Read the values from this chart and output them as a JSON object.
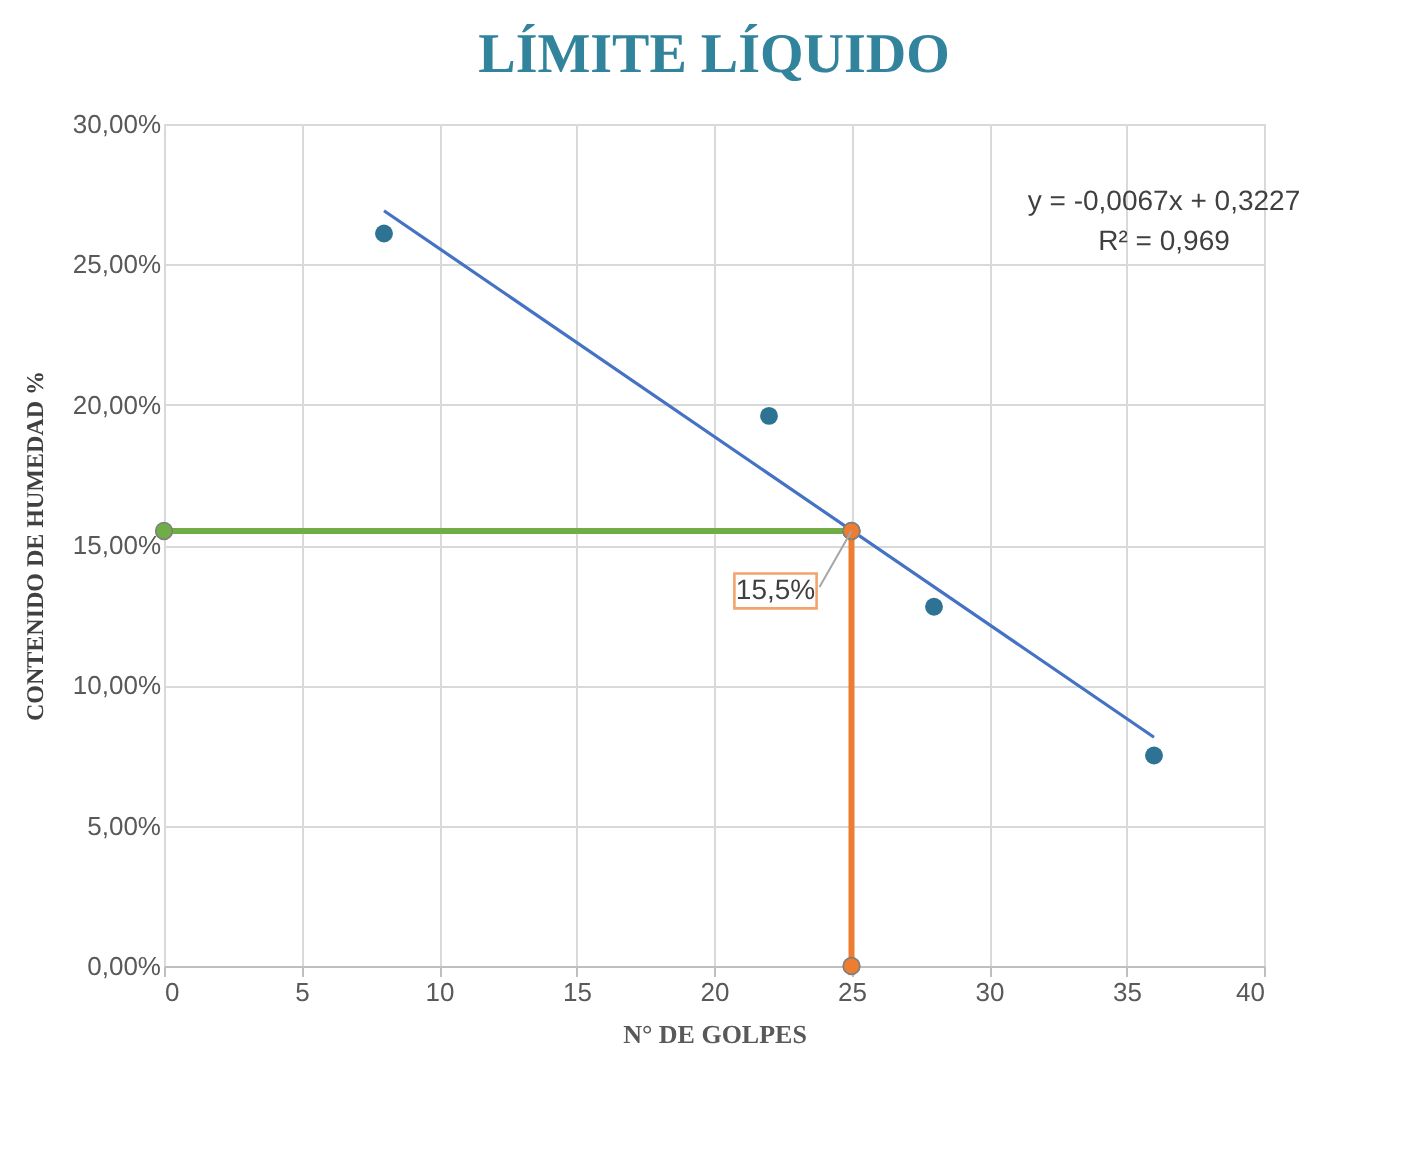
{
  "chart_data": {
    "type": "scatter",
    "title": "LÍMITE LÍQUIDO",
    "xlabel": "N° DE GOLPES",
    "ylabel": "CONTENIDO DE HUMEDAD %",
    "xlim": [
      0,
      40
    ],
    "xticks": [
      0,
      5,
      10,
      15,
      20,
      25,
      30,
      35,
      40
    ],
    "ylim": [
      0,
      30
    ],
    "yticks": [
      {
        "value": 0,
        "label": "0,00%"
      },
      {
        "value": 5,
        "label": "5,00%"
      },
      {
        "value": 10,
        "label": "10,00%"
      },
      {
        "value": 15,
        "label": "15,00%"
      },
      {
        "value": 20,
        "label": "20,00%"
      },
      {
        "value": 25,
        "label": "25,00%"
      },
      {
        "value": 30,
        "label": "30,00%"
      }
    ],
    "grid": true,
    "legend": false,
    "marker": "circle",
    "series": [
      {
        "type": "line",
        "color": "#4472c4",
        "x": [
          8,
          36
        ],
        "values": [
          26.91,
          8.15
        ],
        "marker": "none"
      },
      {
        "type": "line",
        "color": "#70ad47",
        "x": [
          0,
          25
        ],
        "values": [
          15.5,
          15.5
        ],
        "marker": "circle"
      },
      {
        "type": "line",
        "color": "#ed7d31",
        "x": [
          25,
          25
        ],
        "values": [
          0,
          15.5
        ],
        "marker": "circle"
      },
      {
        "color": "#2e7394",
        "x": [
          8,
          22,
          28,
          36
        ],
        "values": [
          26.1,
          19.6,
          12.8,
          7.5
        ]
      }
    ],
    "annotations": [
      "y = -0,0067x + 0,3227",
      "R² = 0,969",
      {
        "text": "15,5%",
        "x": 25,
        "y": 15.5
      }
    ]
  }
}
